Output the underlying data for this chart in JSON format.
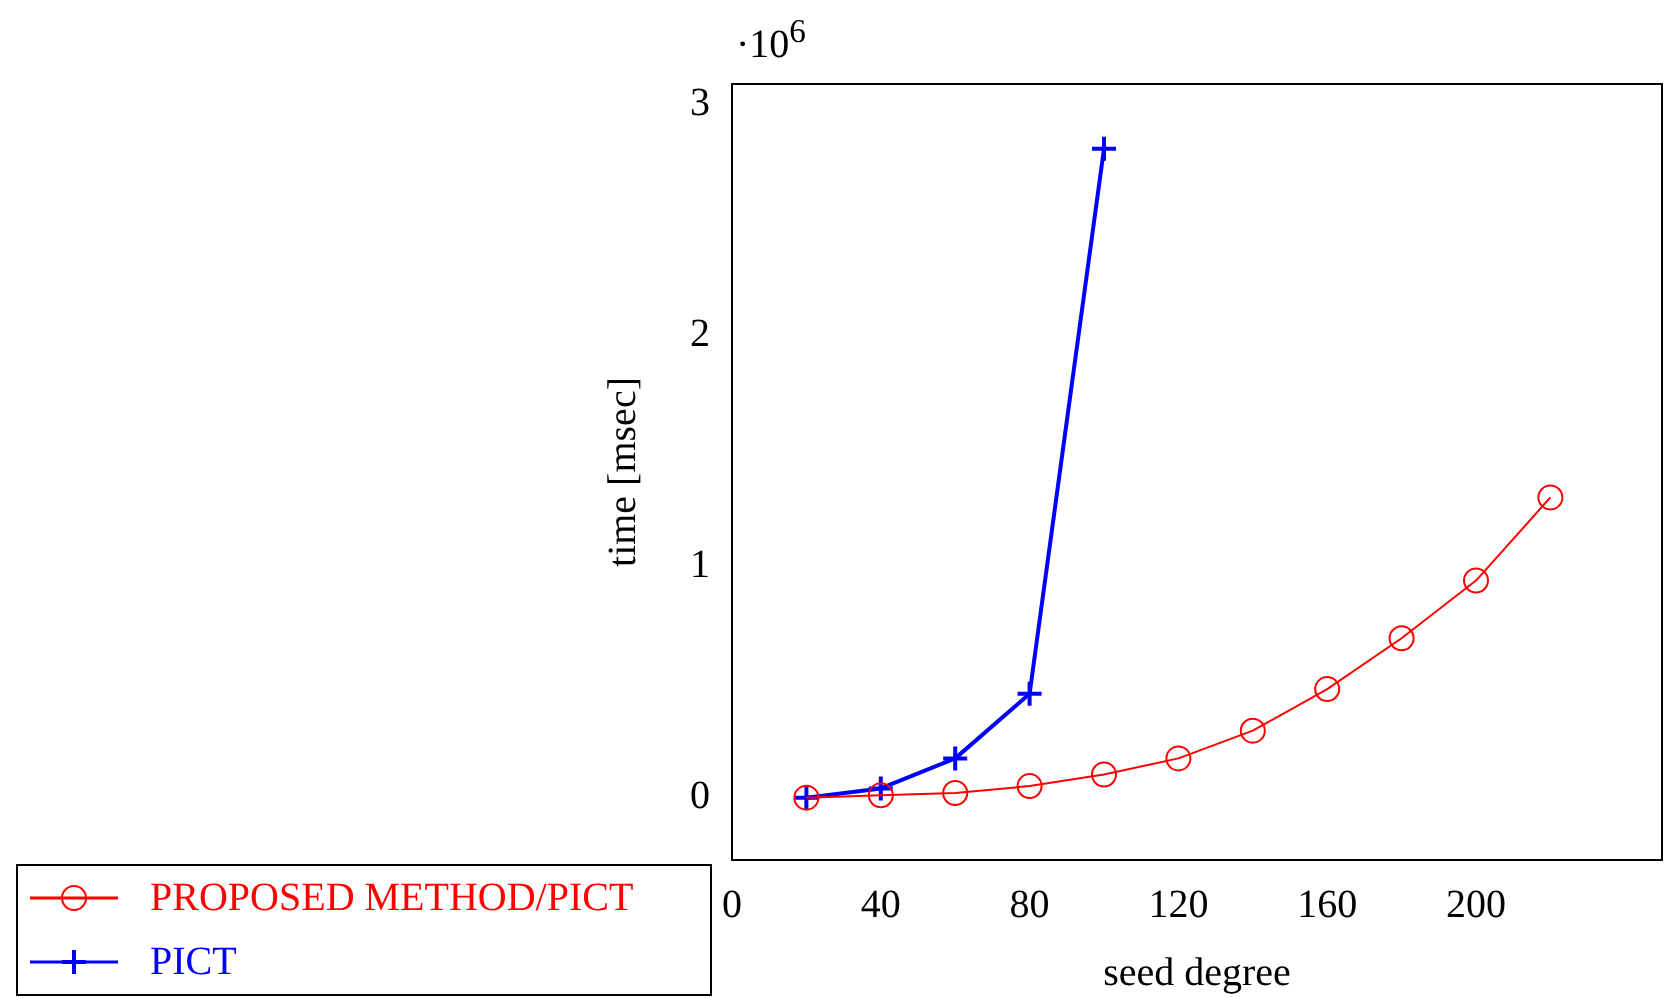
{
  "chart_data": {
    "type": "line",
    "xlabel": "seed degree",
    "ylabel": "time [msec]",
    "annotations": [
      "·10$^{6}$"
    ],
    "xlim": [
      0,
      250
    ],
    "xticks": [
      0,
      40,
      80,
      120,
      160,
      200
    ],
    "ylim": [
      -0.27,
      3.09
    ],
    "yticks": [
      0,
      1,
      2,
      3
    ],
    "grid": false,
    "legend": "bottom left",
    "line_style": "solid",
    "series": [
      {
        "name": "PROPOSED METHOD/PICT",
        "color": "#ff0000",
        "marker": "circle",
        "x": [
          20,
          40,
          60,
          80,
          100,
          120,
          140,
          160,
          180,
          200,
          220
        ],
        "values": [
          0,
          0.01,
          0.02,
          0.05,
          0.1,
          0.17,
          0.29,
          0.47,
          0.69,
          0.94,
          1.3
        ]
      },
      {
        "name": "PICT",
        "color": "#0000ff",
        "marker": "cross",
        "x": [
          20,
          40,
          60,
          80,
          100
        ],
        "values": [
          0,
          0.04,
          0.17,
          0.45,
          2.81
        ]
      }
    ]
  }
}
